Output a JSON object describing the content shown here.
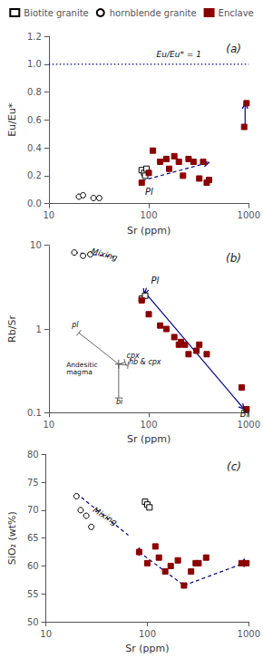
{
  "chart_data": [
    {
      "type": "scatter",
      "title": "(a)",
      "xlabel": "Sr (ppm)",
      "ylabel": "Eu/Eu*",
      "log": "x",
      "grid": false,
      "legend": "top",
      "xlim": [
        10,
        1000
      ],
      "xticks": [
        10,
        100,
        1000
      ],
      "ylim": [
        0,
        1.2
      ],
      "yticks": [
        {
          "value": 0.0,
          "label": "0.0"
        },
        0.2,
        0.4,
        0.6,
        0.8,
        {
          "value": 1.0,
          "label": "1.0"
        },
        1.2
      ],
      "series": [
        {
          "name": "Biotite granite",
          "type": "scatter",
          "marker": "square-open",
          "color": "black",
          "x": [
            85,
            90,
            95,
            92
          ],
          "values": [
            0.24,
            0.22,
            0.25,
            0.2
          ]
        },
        {
          "name": "hornblende granite",
          "type": "scatter",
          "marker": "circle-open",
          "color": "black",
          "x": [
            20,
            22,
            28,
            32
          ],
          "values": [
            0.05,
            0.06,
            0.04,
            0.04
          ]
        },
        {
          "name": "Enclave",
          "type": "scatter",
          "marker": "square",
          "color": "#8B0000",
          "x": [
            85,
            100,
            110,
            130,
            150,
            160,
            180,
            200,
            220,
            250,
            280,
            320,
            350,
            380,
            400,
            900,
            950
          ],
          "values": [
            0.15,
            0.22,
            0.38,
            0.3,
            0.32,
            0.25,
            0.34,
            0.3,
            0.2,
            0.32,
            0.3,
            0.18,
            0.3,
            0.15,
            0.17,
            0.55,
            0.72
          ]
        },
        {
          "type": "hline",
          "color": "#000080",
          "line_style": "dotted",
          "values": [
            1.0
          ]
        },
        {
          "type": "line",
          "color": "#000080",
          "line_style": "dashed",
          "marker": "arrow",
          "x": [
            86,
            400
          ],
          "values": [
            0.165,
            0.295
          ]
        },
        {
          "type": "line",
          "color": "#000080",
          "line_style": "solid",
          "marker": "arrow",
          "x": [
            920,
            920
          ],
          "values": [
            0.56,
            0.72
          ]
        }
      ],
      "annotations": [
        {
          "text": "Eu/Eu* = 1",
          "x": 200,
          "y": 1.04
        },
        {
          "text": "Pl",
          "x": 92,
          "y": 0.12
        }
      ]
    },
    {
      "type": "scatter",
      "title": "(b)",
      "xlabel": "Sr (ppm)",
      "ylabel": "Rb/Sr",
      "log": true,
      "grid": false,
      "xlim": [
        10,
        1000
      ],
      "xticks": [
        10,
        100,
        1000
      ],
      "ylim": [
        0.1,
        10
      ],
      "yticks": [
        0.1,
        1,
        10
      ],
      "series": [
        {
          "type": "scatter",
          "marker": "square-open",
          "color": "black",
          "x": [
            85,
            92
          ],
          "values": [
            2.3,
            2.5
          ]
        },
        {
          "type": "scatter",
          "marker": "circle-open",
          "color": "black",
          "x": [
            18,
            22,
            26
          ],
          "values": [
            8.2,
            7.5,
            7.8
          ]
        },
        {
          "type": "scatter",
          "marker": "square",
          "color": "#8B0000",
          "x": [
            85,
            100,
            130,
            150,
            180,
            200,
            210,
            230,
            250,
            300,
            320,
            380,
            850,
            950
          ],
          "values": [
            2.2,
            1.5,
            1.1,
            1.0,
            0.8,
            0.65,
            0.7,
            0.65,
            0.5,
            0.55,
            0.65,
            0.5,
            0.2,
            0.11
          ]
        },
        {
          "type": "line",
          "color": "#000080",
          "line_style": "dashed",
          "x": [
            18,
            45
          ],
          "values": [
            8.2,
            7.3
          ]
        },
        {
          "type": "line",
          "color": "#000080",
          "line_style": "solid",
          "marker": "arrow",
          "x": [
            90,
            900
          ],
          "values": [
            2.8,
            0.11
          ]
        },
        {
          "type": "line",
          "color": "#000080",
          "line_style": "solid",
          "marker": "arrow",
          "x": [
            95,
            90
          ],
          "values": [
            3.1,
            2.6
          ]
        },
        {
          "type": "line",
          "color": "#555555",
          "line_style": "solid",
          "marker": "tick",
          "x": [
            50,
            20
          ],
          "values": [
            0.38,
            0.9
          ]
        },
        {
          "type": "line",
          "color": "#555555",
          "line_style": "solid",
          "marker": "tick",
          "x": [
            50,
            58
          ],
          "values": [
            0.38,
            0.4
          ]
        },
        {
          "type": "line",
          "color": "#555555",
          "line_style": "solid",
          "marker": "tick",
          "x": [
            50,
            62
          ],
          "values": [
            0.38,
            0.37
          ]
        },
        {
          "type": "line",
          "color": "#555555",
          "line_style": "solid",
          "marker": "tick",
          "x": [
            50,
            50
          ],
          "values": [
            0.38,
            0.15
          ]
        },
        {
          "type": "scatter",
          "marker": "cross",
          "color": "#555555",
          "x": [
            50
          ],
          "values": [
            0.38
          ]
        }
      ],
      "annotations": [
        {
          "text": "Mixing",
          "x": 26,
          "y": 7.6
        },
        {
          "text": "Pl",
          "x": 105,
          "y": 3.3
        },
        {
          "text": "Bi",
          "x": 820,
          "y": 0.085
        },
        {
          "text": "pl",
          "x": 17,
          "y": 1.0
        },
        {
          "text": "Andesitic\nmagma",
          "x": 15,
          "y": 0.42
        },
        {
          "text": "cpx",
          "x": 60,
          "y": 0.43
        },
        {
          "text": "hb & cpx",
          "x": 63,
          "y": 0.36
        },
        {
          "text": "bi",
          "x": 47,
          "y": 0.12
        }
      ]
    },
    {
      "type": "scatter",
      "title": "(c)",
      "xlabel": "Sr (ppm)",
      "ylabel": "SiO₂ (wt%)",
      "log": "x",
      "grid": false,
      "xlim": [
        10,
        1000
      ],
      "xticks": [
        10,
        100,
        1000
      ],
      "ylim": [
        50,
        80
      ],
      "yticks": [
        50,
        55,
        60,
        65,
        70,
        75,
        80
      ],
      "series": [
        {
          "type": "scatter",
          "marker": "square-open",
          "color": "black",
          "x": [
            95,
            100,
            105
          ],
          "values": [
            71.5,
            71.0,
            70.5
          ]
        },
        {
          "type": "scatter",
          "marker": "circle-open",
          "color": "black",
          "x": [
            20,
            22,
            25,
            28
          ],
          "values": [
            72.5,
            70.0,
            69.0,
            67.0
          ]
        },
        {
          "type": "scatter",
          "marker": "square",
          "color": "#8B0000",
          "x": [
            83,
            100,
            120,
            130,
            150,
            170,
            200,
            230,
            270,
            300,
            320,
            380,
            850,
            950
          ],
          "values": [
            62.5,
            60.5,
            63.5,
            61.5,
            59.0,
            60.0,
            61.0,
            56.5,
            59.0,
            60.5,
            60.5,
            61.5,
            60.5,
            60.5
          ]
        },
        {
          "type": "line",
          "color": "#000080",
          "line_style": "dashed",
          "x": [
            20,
            65
          ],
          "values": [
            73.0,
            65.5
          ]
        },
        {
          "type": "line",
          "color": "#000080",
          "line_style": "dashed",
          "x": [
            83,
            230,
            900
          ],
          "values": [
            62.5,
            56.5,
            60.5
          ]
        },
        {
          "type": "line",
          "color": "#000080",
          "line_style": "solid",
          "marker": "arrow",
          "x": [
            83,
            83
          ],
          "values": [
            61.8,
            63.2
          ]
        },
        {
          "type": "line",
          "color": "#000080",
          "line_style": "solid",
          "marker": "arrow",
          "x": [
            900,
            900
          ],
          "values": [
            59.8,
            61.2
          ]
        }
      ],
      "annotations": [
        {
          "text": "Mixing",
          "x": 28,
          "y": 69.5
        }
      ]
    }
  ]
}
